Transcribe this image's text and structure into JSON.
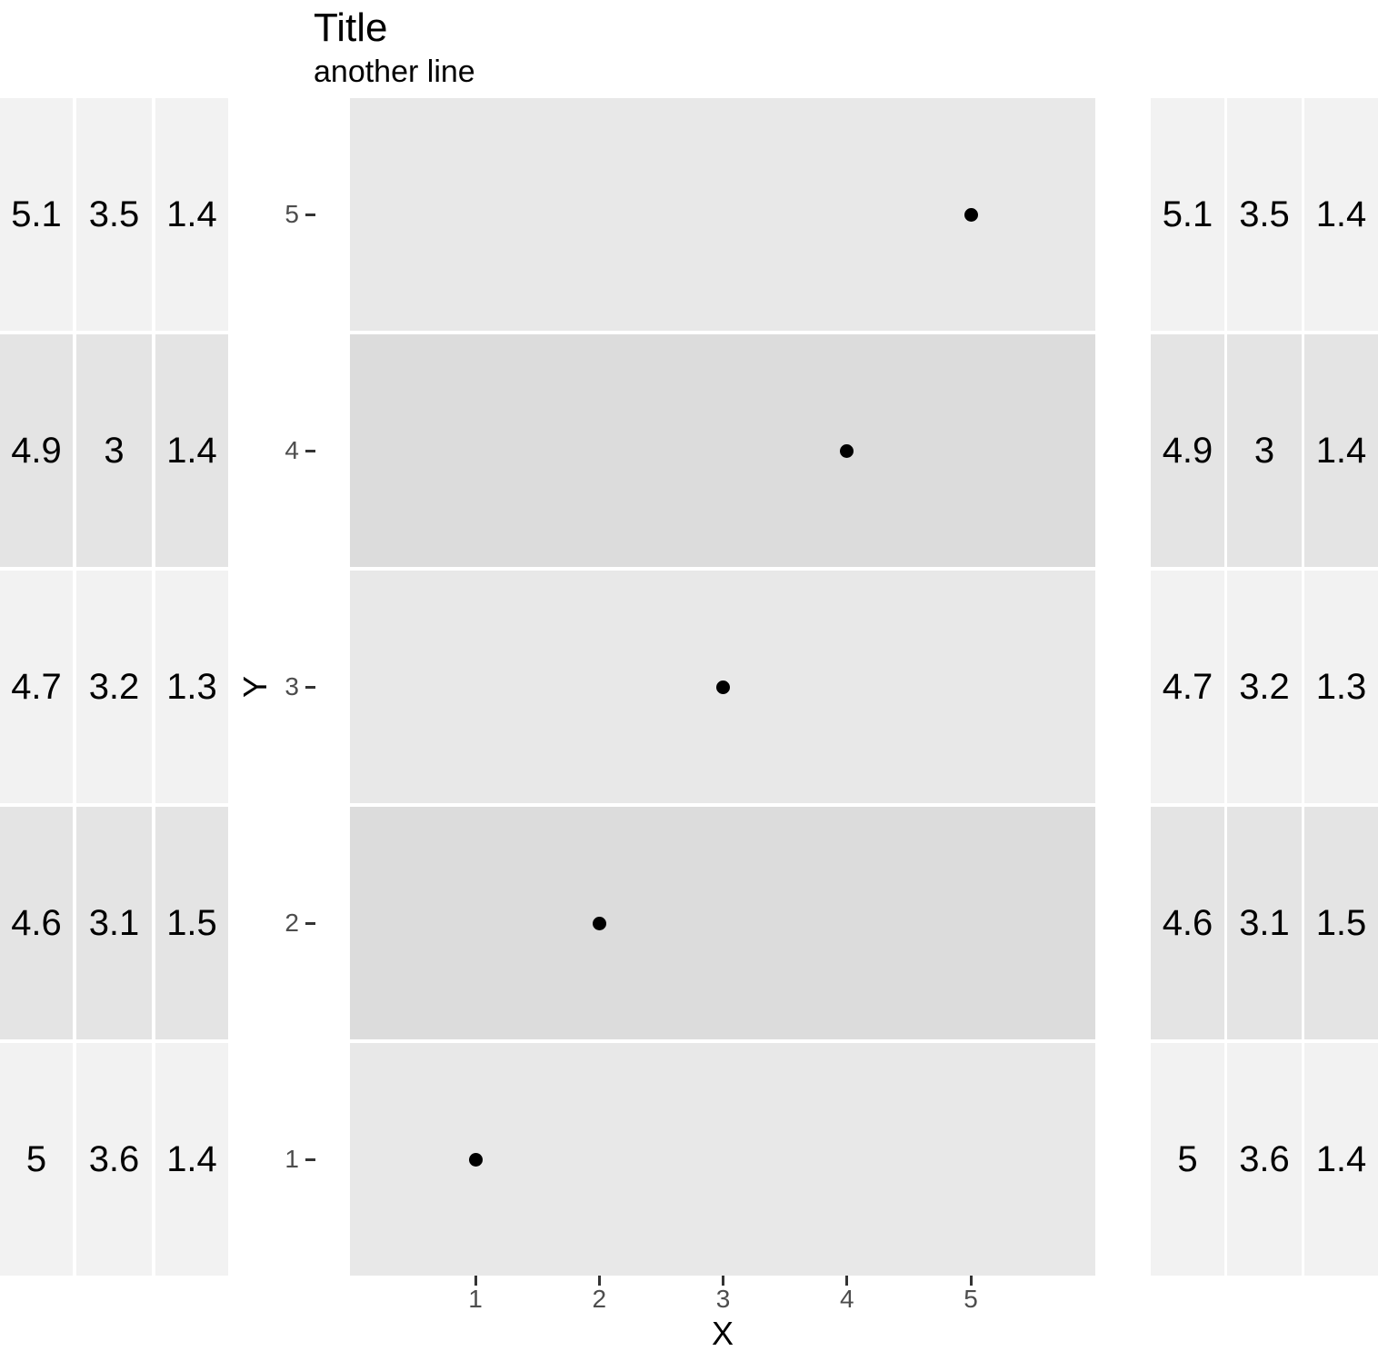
{
  "title": "Title",
  "subtitle": "another line",
  "axes": {
    "x_title": "X",
    "y_title": "Y",
    "x_ticks": [
      "1",
      "2",
      "3",
      "4",
      "5"
    ],
    "y_ticks": [
      "5",
      "4",
      "3",
      "2",
      "1"
    ]
  },
  "left_table": {
    "rows": [
      [
        "5.1",
        "3.5",
        "1.4"
      ],
      [
        "4.9",
        "3",
        "1.4"
      ],
      [
        "4.7",
        "3.2",
        "1.3"
      ],
      [
        "4.6",
        "3.1",
        "1.5"
      ],
      [
        "5",
        "3.6",
        "1.4"
      ]
    ]
  },
  "right_table": {
    "rows": [
      [
        "5.1",
        "3.5",
        "1.4"
      ],
      [
        "4.9",
        "3",
        "1.4"
      ],
      [
        "4.7",
        "3.2",
        "1.3"
      ],
      [
        "4.6",
        "3.1",
        "1.5"
      ],
      [
        "5",
        "3.6",
        "1.4"
      ]
    ]
  },
  "chart_data": {
    "type": "scatter",
    "title": "Title",
    "subtitle": "another line",
    "xlabel": "X",
    "ylabel": "Y",
    "x": [
      1,
      2,
      3,
      4,
      5
    ],
    "y": [
      1,
      2,
      3,
      4,
      5
    ],
    "x_tick_values": [
      1,
      2,
      3,
      4,
      5
    ],
    "y_tick_values": [
      5,
      4,
      3,
      2,
      1
    ],
    "grid": false,
    "legend": false,
    "background_style": "alternating horizontal bands, one band per y value",
    "side_tables": "identical 3-column value tables on left and right, rows aligned to y bands"
  },
  "colors": {
    "background": "#ffffff",
    "table_row_light": "#f2f2f2",
    "table_row_dark": "#e4e4e4",
    "band_light": "#e8e8e8",
    "band_dark": "#dcdcdc",
    "point": "#000000",
    "tick_label": "#4d4d4d",
    "tick_mark": "#333333",
    "text": "#000000"
  }
}
